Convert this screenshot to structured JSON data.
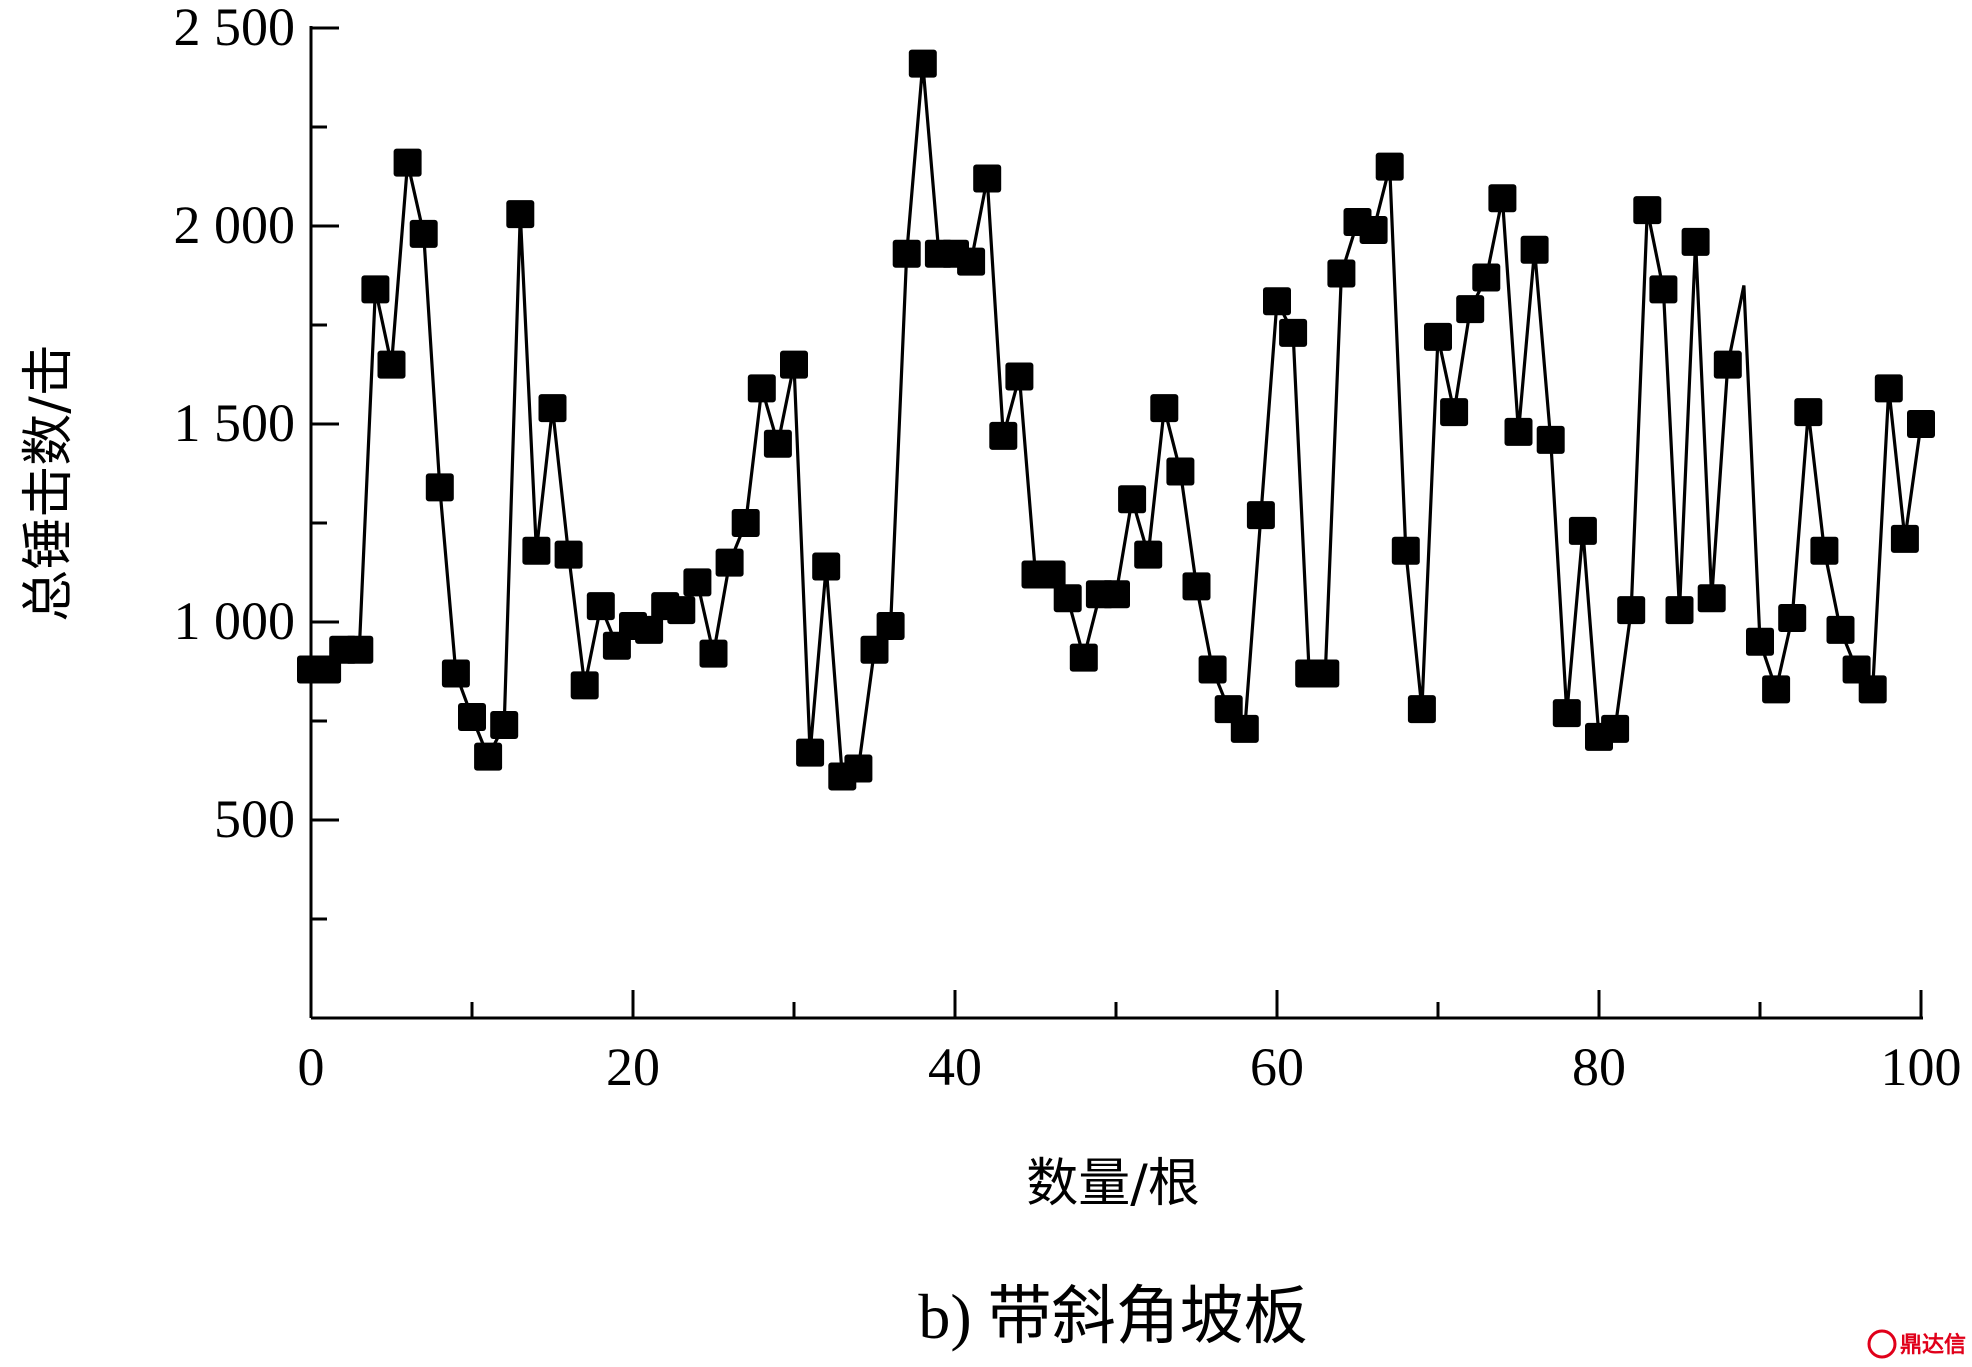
{
  "chart_data": {
    "type": "line",
    "caption": "b) 带斜角坡板",
    "xlabel": "数量/根",
    "ylabel": "总锤击数/击",
    "xlim": [
      0,
      100
    ],
    "ylim": [
      0,
      2500
    ],
    "x_ticks": [
      0,
      20,
      40,
      60,
      80,
      100
    ],
    "x_tick_labels": [
      "0",
      "20",
      "40",
      "60",
      "80",
      "100"
    ],
    "y_ticks": [
      500,
      1000,
      1500,
      2000,
      2500
    ],
    "y_tick_labels": [
      "500",
      "1 000",
      "1 500",
      "2 000",
      "2 500"
    ],
    "grid": false,
    "marker": "filled-square",
    "line_color": "#000000",
    "series": [
      {
        "x": [
          0,
          1,
          2,
          3,
          4,
          5,
          6,
          7,
          8,
          9,
          10,
          11,
          12,
          13,
          14,
          15,
          16,
          17,
          18,
          19,
          20,
          21,
          22,
          23,
          24,
          25,
          26,
          27,
          28,
          29,
          30,
          31,
          32,
          33,
          34,
          35,
          36,
          37,
          38,
          39,
          40,
          41,
          42,
          43,
          44,
          45,
          46,
          47,
          48,
          49,
          50,
          51,
          52,
          53,
          54,
          55,
          56,
          57,
          58,
          59,
          60,
          61,
          62,
          63,
          64,
          65,
          66,
          67,
          68,
          69,
          70,
          71,
          72,
          73,
          74,
          75,
          76,
          77,
          78,
          79,
          80,
          81,
          82,
          83,
          84,
          85,
          86,
          87,
          88,
          89,
          90,
          91,
          92,
          93,
          94,
          95,
          96,
          97,
          98,
          99,
          100
        ],
        "y": [
          880,
          880,
          930,
          930,
          1840,
          1650,
          2160,
          1980,
          1340,
          870,
          760,
          660,
          740,
          2030,
          1180,
          1540,
          1170,
          840,
          1040,
          940,
          990,
          980,
          1040,
          1030,
          1100,
          920,
          1150,
          1250,
          1590,
          1450,
          1650,
          670,
          1140,
          610,
          630,
          930,
          990,
          1930,
          2410,
          1930,
          1930,
          1910,
          2120,
          1470,
          1620,
          1120,
          1120,
          1060,
          910,
          1070,
          1070,
          1310,
          1170,
          1540,
          1380,
          1090,
          880,
          780,
          730,
          1270,
          1810,
          1730,
          870,
          870,
          1880,
          2010,
          1990,
          2150,
          1180,
          780,
          1720,
          1530,
          1790,
          1870,
          2070,
          1480,
          1940,
          1460,
          770,
          1230,
          710,
          730,
          1030,
          2040,
          1840,
          1030,
          1960,
          1060,
          1650,
          1850,
          950,
          830,
          1010,
          1530,
          1180,
          980,
          880,
          830,
          1590,
          1210,
          1500
        ],
        "markers_omitted_at_x": [
          89
        ]
      }
    ]
  },
  "watermark": "鼎达信"
}
